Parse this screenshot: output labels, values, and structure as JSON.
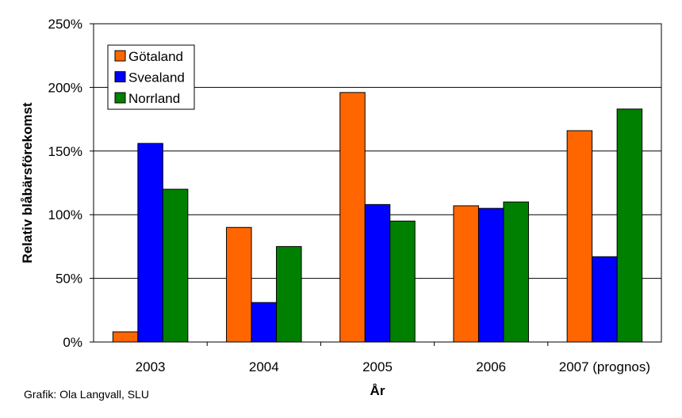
{
  "chart_data": {
    "type": "bar",
    "categories": [
      "2003",
      "2004",
      "2005",
      "2006",
      "2007 (prognos)"
    ],
    "series": [
      {
        "name": "Götaland",
        "color": "#ff6600",
        "values": [
          8,
          90,
          196,
          107,
          166
        ]
      },
      {
        "name": "Svealand",
        "color": "#0000ff",
        "values": [
          156,
          31,
          108,
          105,
          67
        ]
      },
      {
        "name": "Norrland",
        "color": "#008000",
        "values": [
          120,
          75,
          95,
          110,
          183
        ]
      }
    ],
    "xlabel": "År",
    "ylabel": "Relativ blåbärsförekomst",
    "ylim": [
      0,
      250
    ],
    "yticks": [
      "0%",
      "50%",
      "100%",
      "150%",
      "200%",
      "250%"
    ],
    "grid": true,
    "legend_position": "top-left"
  },
  "credit": "Grafik: Ola Langvall, SLU"
}
